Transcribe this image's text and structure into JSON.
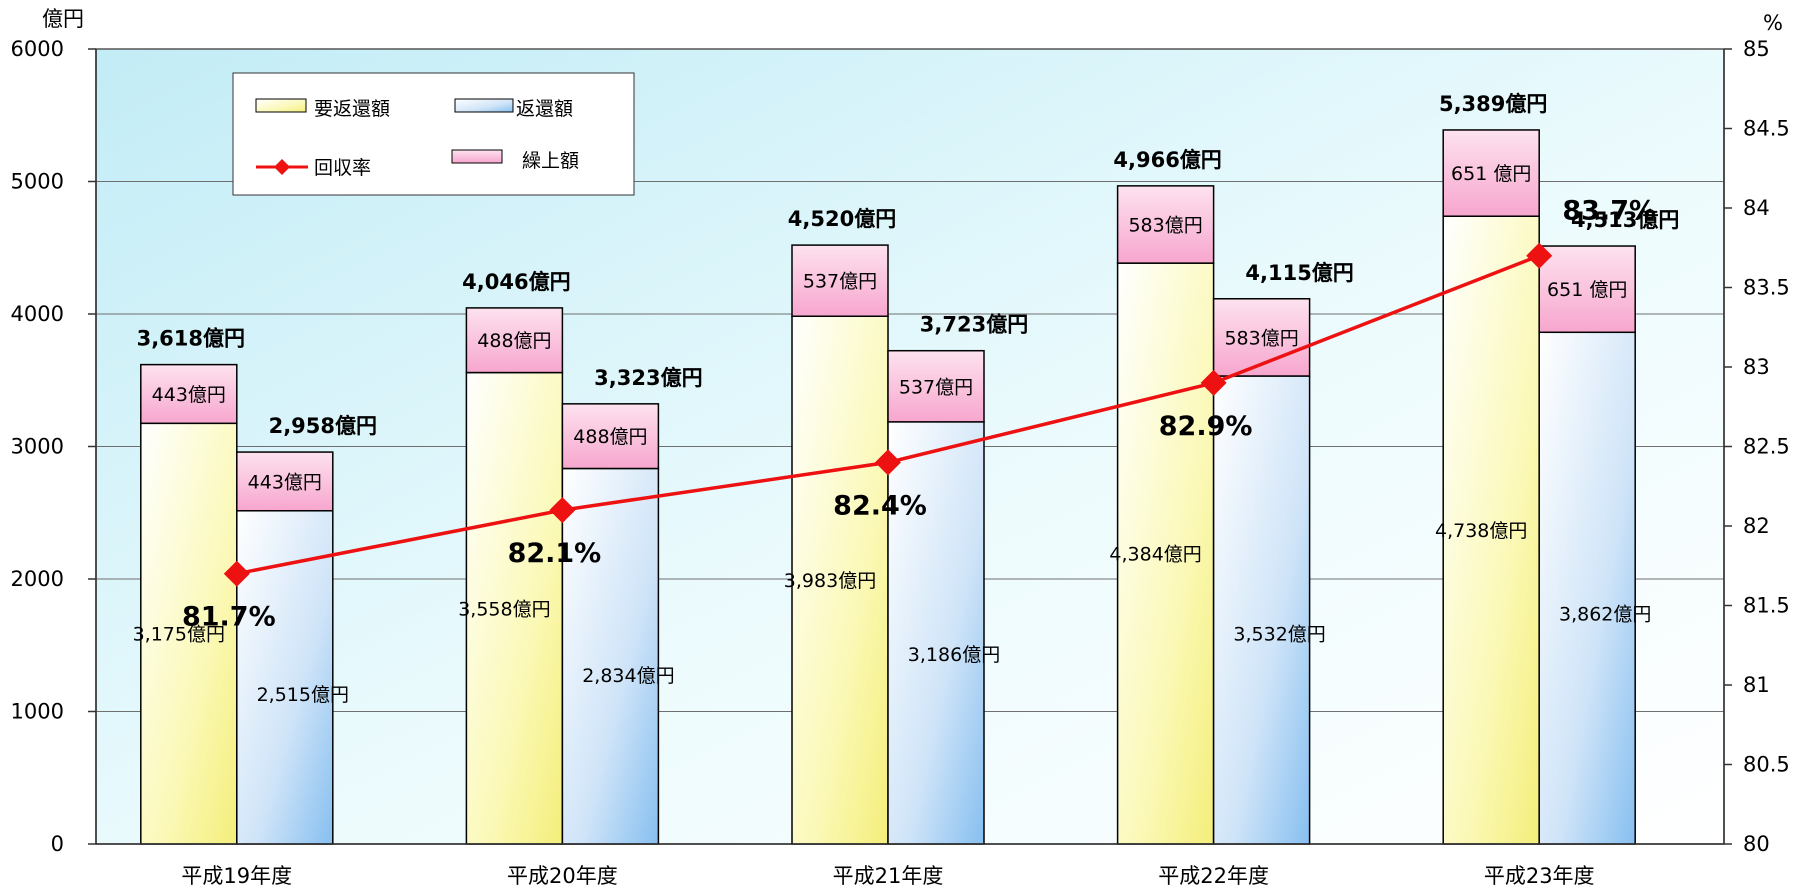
{
  "chart_data": {
    "type": "bar",
    "categories": [
      "平成19年度",
      "平成20年度",
      "平成21年度",
      "平成22年度",
      "平成23年度"
    ],
    "y_left": {
      "unit": "億円",
      "ylim": [
        0,
        6000
      ],
      "ticks": [
        "0",
        "1000",
        "2000",
        "3000",
        "4000",
        "5000",
        "6000"
      ]
    },
    "y_right": {
      "unit": "%",
      "ylim": [
        80,
        85
      ],
      "ticks": [
        "80",
        "80.5",
        "81",
        "81.5",
        "82",
        "82.5",
        "83",
        "83.5",
        "84",
        "84.5",
        "85"
      ]
    },
    "series": [
      {
        "name": "要返還額",
        "stack_base": [
          3175,
          3558,
          3983,
          4384,
          4738
        ],
        "stack_top": [
          443,
          488,
          537,
          583,
          651
        ],
        "totals": [
          3618,
          4046,
          4520,
          4966,
          5389
        ]
      },
      {
        "name": "返還額",
        "stack_base": [
          2515,
          2834,
          3186,
          3532,
          3862
        ],
        "stack_top": [
          443,
          488,
          537,
          583,
          651
        ],
        "totals": [
          2958,
          3323,
          3723,
          4115,
          4513
        ]
      },
      {
        "name": "繰上額",
        "values": [
          443,
          488,
          537,
          583,
          651
        ]
      },
      {
        "name": "回収率",
        "axis": "right",
        "values": [
          81.7,
          82.1,
          82.4,
          82.9,
          83.7
        ]
      }
    ],
    "labels": {
      "req_base": [
        "3,175億円",
        "3,558億円",
        "3,983億円",
        "4,384億円",
        "4,738億円"
      ],
      "req_top": [
        "443億円",
        "488億円",
        "537億円",
        "583億円",
        "651 億円"
      ],
      "req_total": [
        "3,618億円",
        "4,046億円",
        "4,520億円",
        "4,966億円",
        "5,389億円"
      ],
      "ret_base": [
        "2,515億円",
        "2,834億円",
        "3,186億円",
        "3,532億円",
        "3,862億円"
      ],
      "ret_top": [
        "443億円",
        "488億円",
        "537億円",
        "583億円",
        "651 億円"
      ],
      "ret_total": [
        "2,958億円",
        "3,323億円",
        "3,723億円",
        "4,115億円",
        "4,513億円"
      ],
      "rate": [
        "81.7%",
        "82.1%",
        "82.4%",
        "82.9%",
        "83.7%"
      ]
    },
    "legend": {
      "position": "top-left",
      "items": [
        "要返還額",
        "返還額",
        "回収率",
        "繰上額"
      ]
    },
    "grid": true,
    "colors": {
      "line": "#ee1111",
      "marker": "#ee1111",
      "top_segment": "#f9a7d0",
      "plot_top": "#c7ecf7",
      "plot_bottom": "#ffffff"
    }
  }
}
